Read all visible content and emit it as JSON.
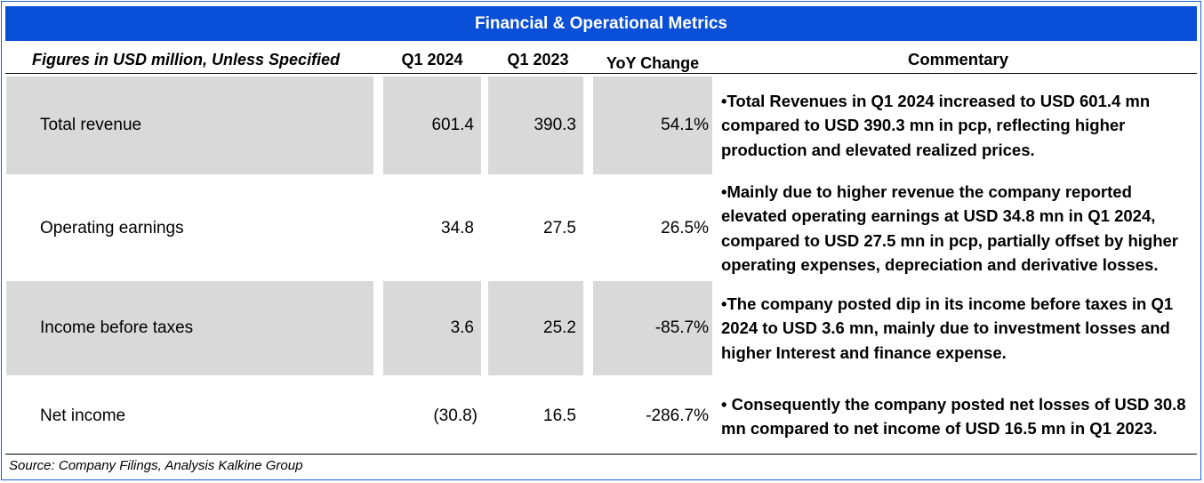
{
  "title": "Financial & Operational Metrics",
  "headers": {
    "label": "Figures in USD million, Unless Specified",
    "q1_2024": "Q1 2024",
    "q1_2023": "Q1 2023",
    "yoy": "YoY Change",
    "commentary": "Commentary"
  },
  "rows": [
    {
      "label": "Total revenue",
      "q1_2024": "601.4",
      "q1_2023": "390.3",
      "yoy": "54.1%",
      "commentary": "•Total Revenues in Q1 2024 increased to USD 601.4 mn compared to USD 390.3 mn in pcp, reflecting higher production and elevated realized prices."
    },
    {
      "label": "Operating earnings",
      "q1_2024": "34.8",
      "q1_2023": "27.5",
      "yoy": "26.5%",
      "commentary": "•Mainly due to higher revenue the company reported elevated operating earnings at USD 34.8 mn in Q1 2024, compared to USD 27.5 mn in pcp, partially offset by higher operating expenses, depreciation and derivative losses."
    },
    {
      "label": "Income before taxes",
      "q1_2024": "3.6",
      "q1_2023": "25.2",
      "yoy": "-85.7%",
      "commentary": "•The company posted dip in its income before taxes in Q1 2024 to USD 3.6 mn, mainly due to investment losses and higher Interest and finance expense."
    },
    {
      "label": "Net income",
      "q1_2024": "(30.8)",
      "q1_2023": "16.5",
      "yoy": "-286.7%",
      "commentary": "• Consequently the company posted net losses of USD 30.8 mn compared to net income of USD 16.5 mn in Q1 2023."
    }
  ],
  "source": "Source: Company Filings, Analysis Kalkine Group",
  "colors": {
    "banner": "#0a4fd8",
    "shade": "#d9d9d9",
    "frame": "#1f5bd6"
  }
}
